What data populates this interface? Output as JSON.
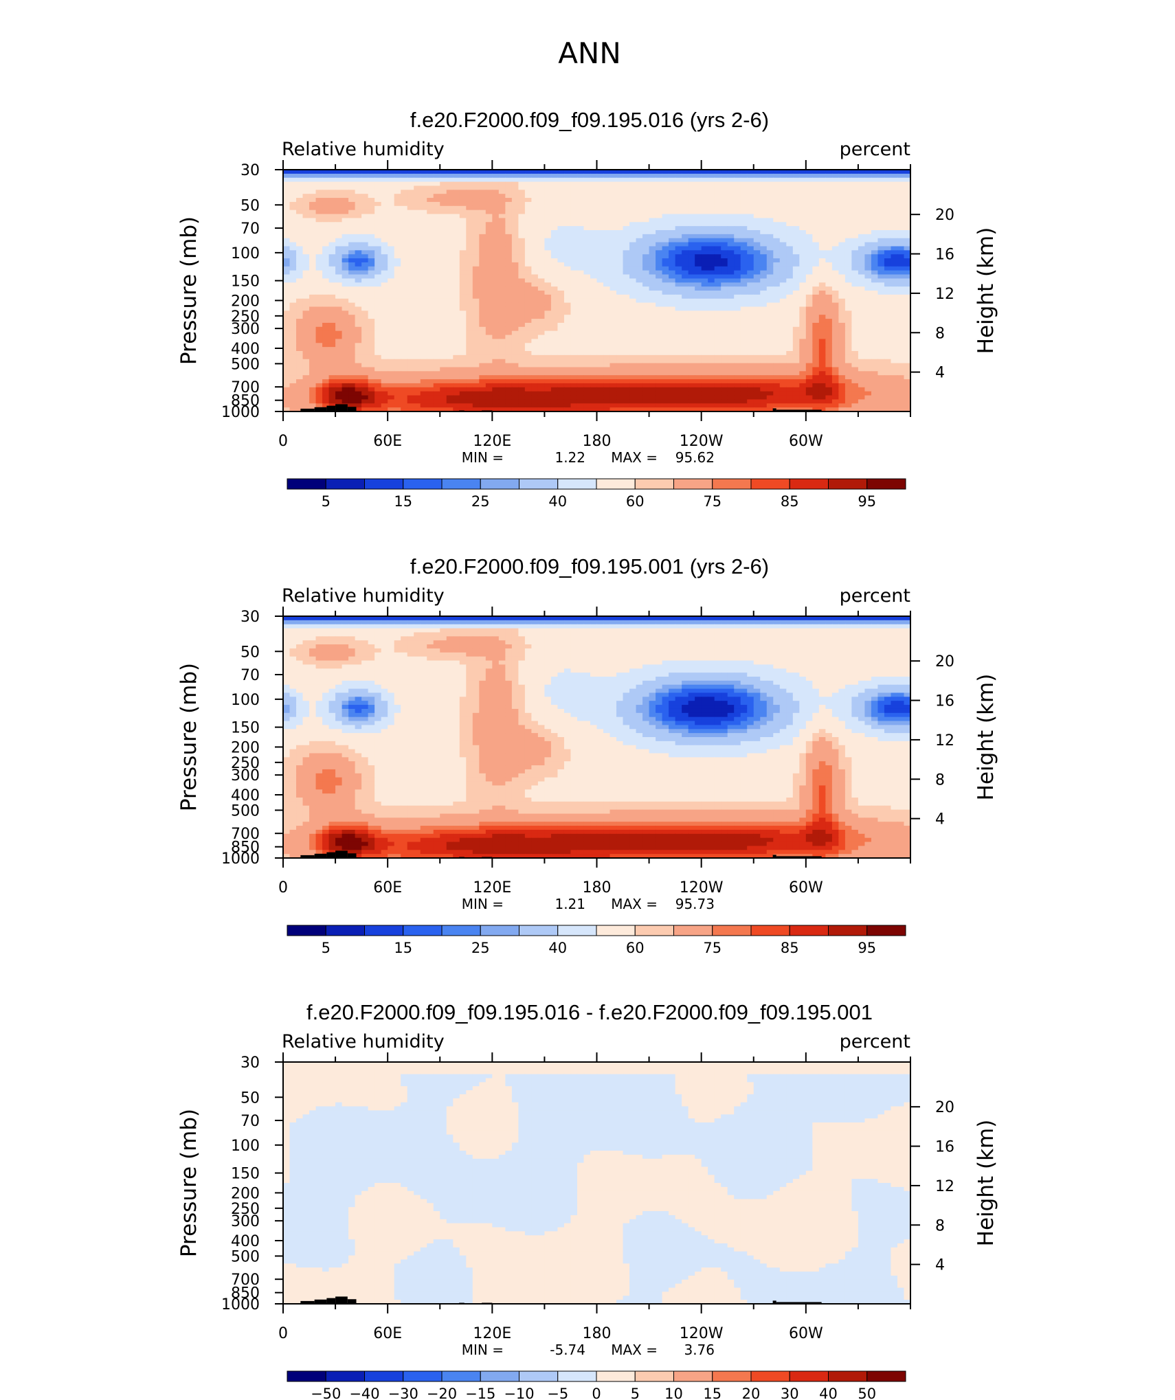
{
  "title": "ANN",
  "colors": {
    "humidity_scale": [
      "#00007a",
      "#0a1fb5",
      "#1741dd",
      "#2a62ef",
      "#4a84f1",
      "#82a9f0",
      "#aec9f6",
      "#d6e6fb",
      "#fdeadb",
      "#fccbb0",
      "#f7a486",
      "#f4784f",
      "#ef4a24",
      "#d92912",
      "#b11a08",
      "#7d0502"
    ],
    "land": "#000000"
  },
  "chart_data": [
    {
      "type": "heatmap",
      "panel_title": "f.e20.F2000.f09_f09.195.016 (yrs 2-6)",
      "variable_label": "Relative humidity",
      "units_label": "percent",
      "ylabel": "Pressure (mb)",
      "ylabel_right": "Height (km)",
      "y_ticks": [
        "30",
        "50",
        "70",
        "100",
        "150",
        "200",
        "250",
        "300",
        "400",
        "500",
        "700",
        "850",
        "1000"
      ],
      "y_right_ticks": [
        "20",
        "16",
        "12",
        "8",
        "4"
      ],
      "x_ticks": [
        "0",
        "60E",
        "120E",
        "180",
        "120W",
        "60W"
      ],
      "min_label": "MIN =",
      "min_value": "1.22",
      "max_label": "MAX =",
      "max_value": "95.62",
      "colorbar_labels": [
        "5",
        "15",
        "25",
        "40",
        "60",
        "75",
        "85",
        "95"
      ],
      "colorbar_levels": [
        5,
        10,
        15,
        20,
        25,
        30,
        40,
        50,
        60,
        65,
        75,
        80,
        85,
        90,
        95
      ],
      "colorbar": "humidity"
    },
    {
      "type": "heatmap",
      "panel_title": "f.e20.F2000.f09_f09.195.001 (yrs 2-6)",
      "variable_label": "Relative humidity",
      "units_label": "percent",
      "ylabel": "Pressure (mb)",
      "ylabel_right": "Height (km)",
      "y_ticks": [
        "30",
        "50",
        "70",
        "100",
        "150",
        "200",
        "250",
        "300",
        "400",
        "500",
        "700",
        "850",
        "1000"
      ],
      "y_right_ticks": [
        "20",
        "16",
        "12",
        "8",
        "4"
      ],
      "x_ticks": [
        "0",
        "60E",
        "120E",
        "180",
        "120W",
        "60W"
      ],
      "min_label": "MIN =",
      "min_value": "1.21",
      "max_label": "MAX =",
      "max_value": "95.73",
      "colorbar_labels": [
        "5",
        "15",
        "25",
        "40",
        "60",
        "75",
        "85",
        "95"
      ],
      "colorbar_levels": [
        5,
        10,
        15,
        20,
        25,
        30,
        40,
        50,
        60,
        65,
        75,
        80,
        85,
        90,
        95
      ],
      "colorbar": "humidity"
    },
    {
      "type": "heatmap",
      "panel_title": "f.e20.F2000.f09_f09.195.016 - f.e20.F2000.f09_f09.195.001",
      "variable_label": "Relative humidity",
      "units_label": "percent",
      "ylabel": "Pressure (mb)",
      "ylabel_right": "Height (km)",
      "y_ticks": [
        "30",
        "50",
        "70",
        "100",
        "150",
        "200",
        "250",
        "300",
        "400",
        "500",
        "700",
        "850",
        "1000"
      ],
      "y_right_ticks": [
        "20",
        "16",
        "12",
        "8",
        "4"
      ],
      "x_ticks": [
        "0",
        "60E",
        "120E",
        "180",
        "120W",
        "60W"
      ],
      "min_label": "MIN =",
      "min_value": "-5.74",
      "max_label": "MAX =",
      "max_value": "3.76",
      "colorbar_labels": [
        "−50",
        "−40",
        "−30",
        "−20",
        "−15",
        "−10",
        "−5",
        "0",
        "5",
        "10",
        "15",
        "20",
        "30",
        "40",
        "50"
      ],
      "colorbar_levels": [
        -50,
        -40,
        -30,
        -20,
        -15,
        -10,
        -5,
        0,
        5,
        10,
        15,
        20,
        30,
        40,
        50
      ],
      "colorbar": "difference"
    }
  ]
}
